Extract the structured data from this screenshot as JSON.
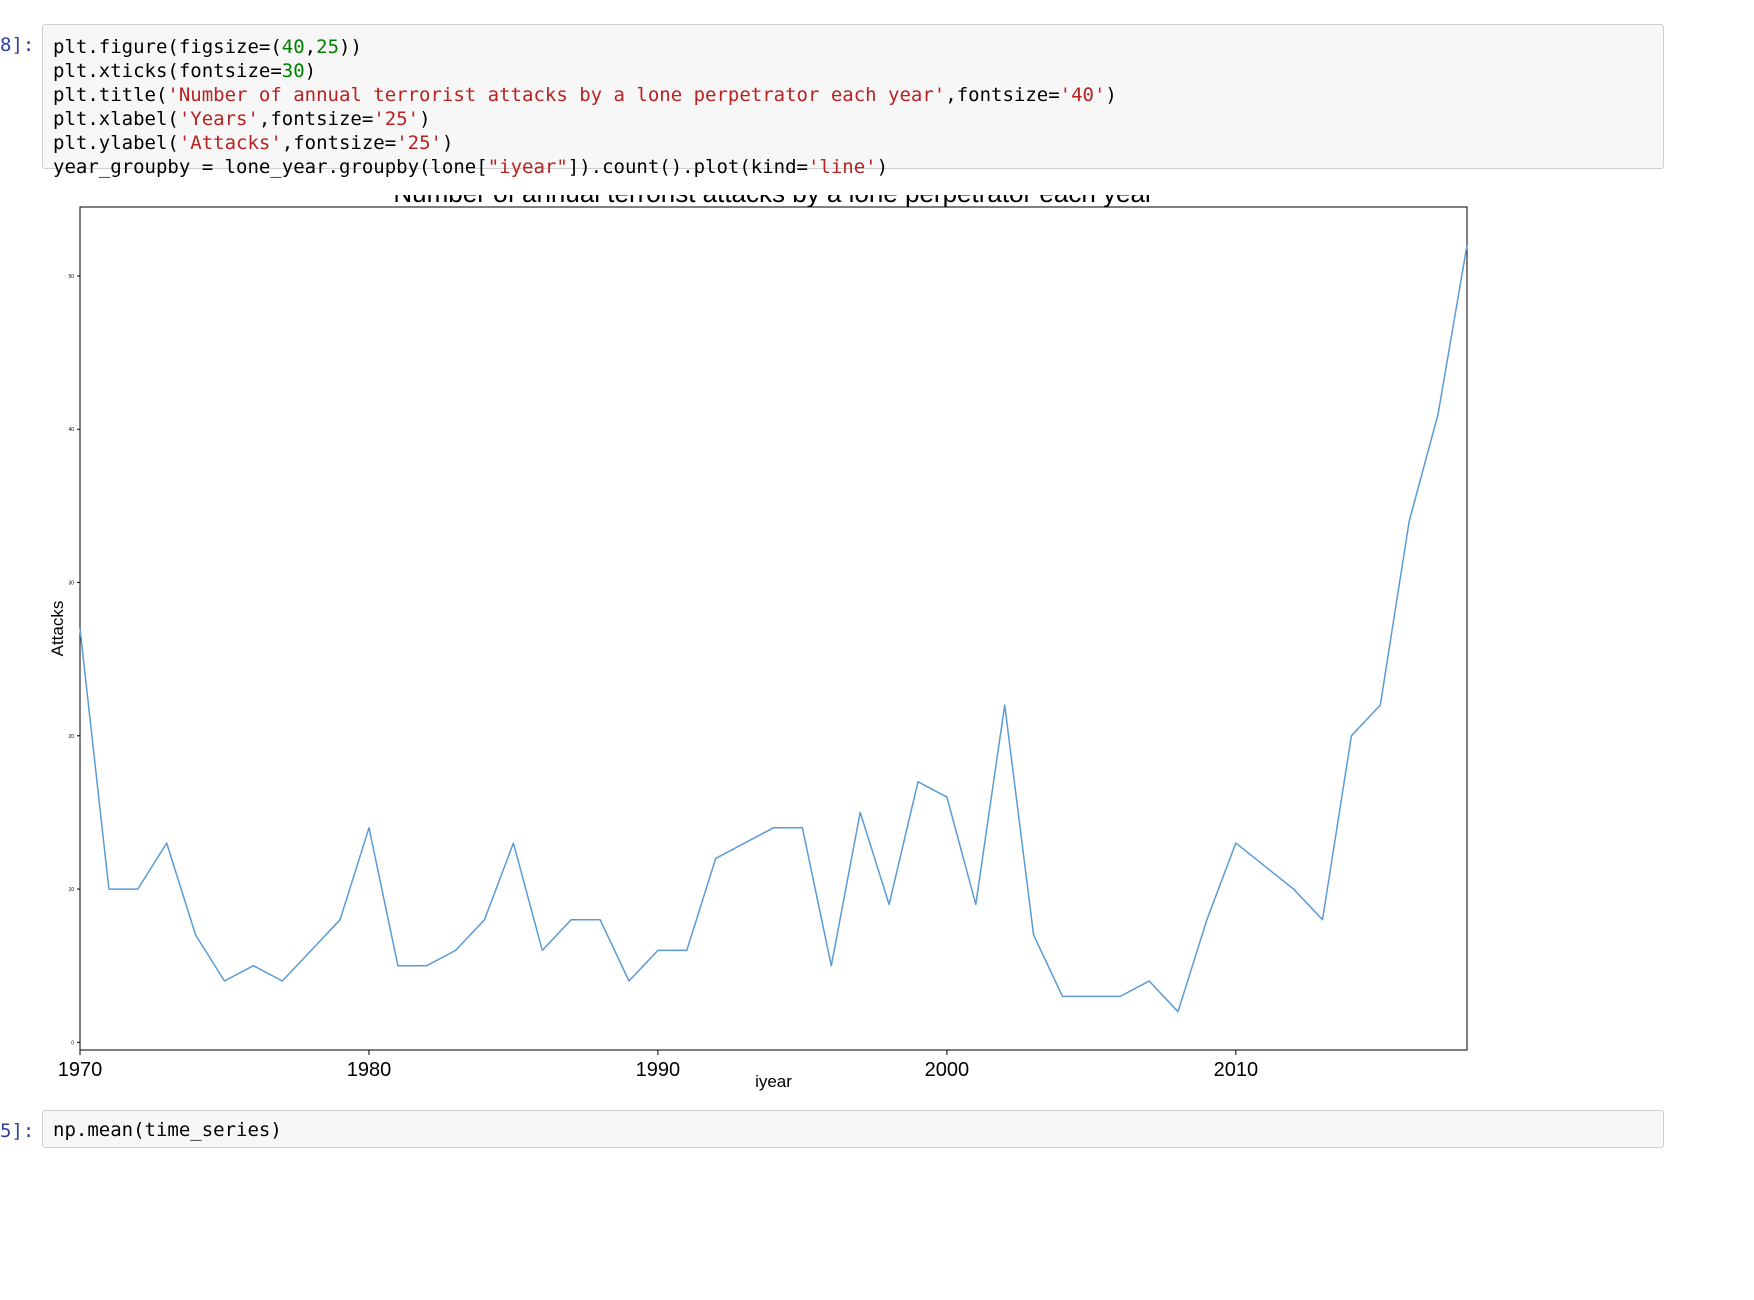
{
  "prompts": {
    "cell1": "8]:",
    "cell2": "5]:"
  },
  "cell1": {
    "lines": [
      [
        {
          "t": "plt.figure(figsize=(",
          "c": ""
        },
        {
          "t": "40",
          "c": "n"
        },
        {
          "t": ",",
          "c": ""
        },
        {
          "t": "25",
          "c": "n"
        },
        {
          "t": "))",
          "c": ""
        }
      ],
      [
        {
          "t": "plt.xticks(fontsize=",
          "c": ""
        },
        {
          "t": "30",
          "c": "n"
        },
        {
          "t": ")",
          "c": ""
        }
      ],
      [
        {
          "t": "plt.title(",
          "c": ""
        },
        {
          "t": "'Number of annual terrorist attacks by a lone perpetrator each year'",
          "c": "s"
        },
        {
          "t": ",fontsize=",
          "c": ""
        },
        {
          "t": "'40'",
          "c": "s"
        },
        {
          "t": ")",
          "c": ""
        }
      ],
      [
        {
          "t": "plt.xlabel(",
          "c": ""
        },
        {
          "t": "'Years'",
          "c": "s"
        },
        {
          "t": ",fontsize=",
          "c": ""
        },
        {
          "t": "'25'",
          "c": "s"
        },
        {
          "t": ")",
          "c": ""
        }
      ],
      [
        {
          "t": "plt.ylabel(",
          "c": ""
        },
        {
          "t": "'Attacks'",
          "c": "s"
        },
        {
          "t": ",fontsize=",
          "c": ""
        },
        {
          "t": "'25'",
          "c": "s"
        },
        {
          "t": ")",
          "c": ""
        }
      ],
      [
        {
          "t": "year_groupby = lone_year.groupby(lone[",
          "c": ""
        },
        {
          "t": "\"iyear\"",
          "c": "s"
        },
        {
          "t": "]).count().plot(kind=",
          "c": ""
        },
        {
          "t": "'line'",
          "c": "s"
        },
        {
          "t": ")",
          "c": ""
        }
      ]
    ]
  },
  "cell2": {
    "lines": [
      [
        {
          "t": "np.mean(time_series)",
          "c": ""
        }
      ]
    ]
  },
  "colors": {
    "line": "#5b9bd5",
    "string": "#ba2121",
    "number": "#008000",
    "prompt": "#303f9f"
  },
  "chart_data": {
    "type": "line",
    "title": "Number of annual terrorist attacks by a lone perpetrator each year",
    "xlabel": "iyear",
    "ylabel": "Attacks",
    "x": [
      1970,
      1971,
      1972,
      1973,
      1974,
      1975,
      1976,
      1977,
      1978,
      1979,
      1980,
      1981,
      1982,
      1983,
      1984,
      1985,
      1986,
      1987,
      1988,
      1989,
      1990,
      1991,
      1992,
      1993,
      1994,
      1995,
      1996,
      1997,
      1998,
      1999,
      2000,
      2001,
      2002,
      2003,
      2004,
      2005,
      2006,
      2007,
      2008,
      2009,
      2010,
      2011,
      2012,
      2013,
      2014,
      2015,
      2016,
      2017,
      2018
    ],
    "values": [
      27,
      10,
      10,
      13,
      7,
      4,
      5,
      4,
      6,
      8,
      14,
      5,
      5,
      6,
      8,
      13,
      6,
      8,
      8,
      4,
      6,
      6,
      12,
      13,
      14,
      14,
      5,
      15,
      9,
      17,
      16,
      9,
      22,
      7,
      3,
      3,
      3,
      4,
      2,
      8,
      13,
      11.5,
      10,
      8,
      20,
      22,
      34,
      41,
      52
    ],
    "xlim": [
      1970,
      2018
    ],
    "ylim": [
      -0.5,
      54.5
    ],
    "xticks": [
      "1970",
      "1980",
      "1990",
      "2000",
      "2010"
    ],
    "yticks": [
      "0",
      "10",
      "20",
      "30",
      "40",
      "50"
    ],
    "grid": false,
    "legend": false
  }
}
